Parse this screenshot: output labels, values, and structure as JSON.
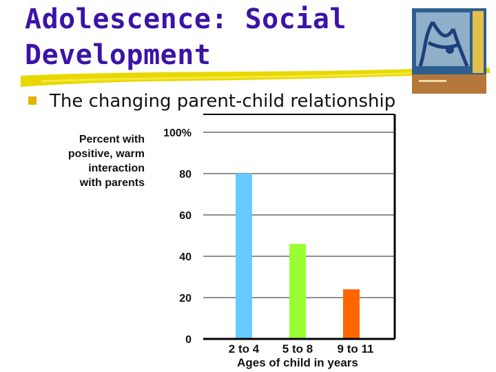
{
  "slide": {
    "title_line1": "Adolescence: Social",
    "title_line2": "Development",
    "bullet": "The changing parent-child relationship",
    "cover_image": "book-cover-tree-illustration"
  },
  "colors": {
    "title": "#3a14a8",
    "underline": "#e8d800",
    "bullet_mark": "#e0b400"
  },
  "chart_data": {
    "type": "bar",
    "ylabel": "Percent with\npositive, warm\ninteraction\nwith parents",
    "xlabel": "Ages of child in years",
    "categories": [
      "2 to 4",
      "5 to 8",
      "9 to 11"
    ],
    "values": [
      80,
      46,
      24
    ],
    "colors": [
      "#66ccff",
      "#99ff33",
      "#ff6600"
    ],
    "ylim": [
      0,
      100
    ],
    "yticks": [
      "100%",
      "80",
      "60",
      "40",
      "20",
      "0"
    ],
    "grid": true
  }
}
